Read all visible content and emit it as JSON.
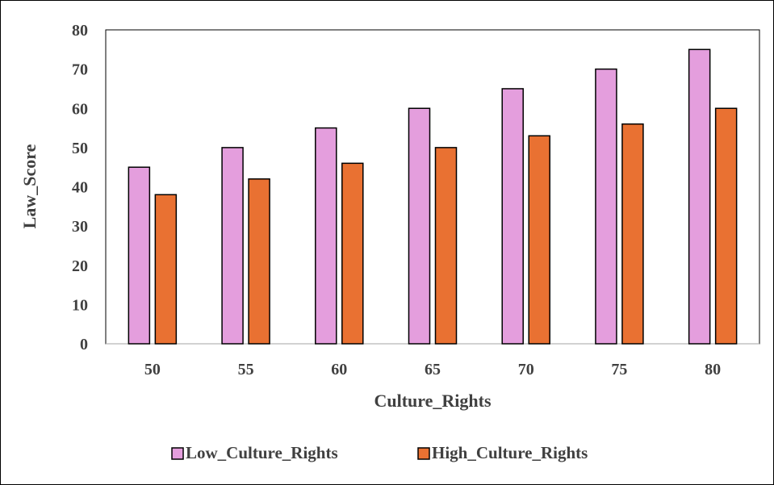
{
  "chart_data": {
    "type": "bar",
    "categories": [
      "50",
      "55",
      "60",
      "65",
      "70",
      "75",
      "80"
    ],
    "series": [
      {
        "name": "Low_Culture_Rights",
        "color": "#e49edd",
        "values": [
          45,
          50,
          55,
          60,
          65,
          70,
          75
        ]
      },
      {
        "name": "High_Culture_Rights",
        "color": "#e97132",
        "values": [
          38,
          42,
          46,
          50,
          53,
          56,
          60
        ]
      }
    ],
    "xlabel": "Culture_Rights",
    "ylabel": "Law_Score",
    "ylim": [
      0,
      80
    ],
    "yticks": [
      "0",
      "10",
      "20",
      "30",
      "40",
      "50",
      "60",
      "70",
      "80"
    ],
    "grid": false,
    "legend_position": "bottom"
  }
}
